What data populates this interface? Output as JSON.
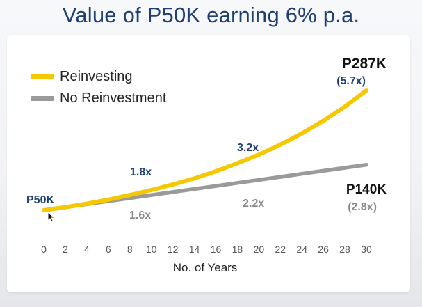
{
  "slide": {
    "title": "Value of P50K earning 6% p.a."
  },
  "colors": {
    "title": "#1f3f73",
    "reinvesting": "#f6c800",
    "no_reinvestment": "#9a9a9a",
    "reinvest_annotation": "#1f3f73",
    "no_reinvest_annotation": "#8a8a8a",
    "end_value": "#111111",
    "axis_text": "#555555",
    "xlabel": "#222222"
  },
  "annotations": {
    "start_label": "P50K",
    "reinvest_end_value": "P287K",
    "reinvest_end_multiple": "(5.7x)",
    "reinvest_mid_1": "1.8x",
    "reinvest_mid_2": "3.2x",
    "no_reinvest_end_value": "P140K",
    "no_reinvest_end_multiple": "(2.8x)",
    "no_reinvest_mid_1": "1.6x",
    "no_reinvest_mid_2": "2.2x"
  },
  "cursor_icon": "mouse-pointer-icon",
  "chart_data": {
    "type": "line",
    "title": "Value of P50K earning 6% p.a.",
    "xlabel": "No. of Years",
    "ylabel": "",
    "x": [
      0,
      2,
      4,
      6,
      8,
      10,
      12,
      14,
      16,
      18,
      20,
      22,
      24,
      26,
      28,
      30
    ],
    "xlim": [
      0,
      30
    ],
    "ylim": [
      40,
      300
    ],
    "grid": false,
    "legend_position": "top-left",
    "series": [
      {
        "name": "Reinvesting",
        "color": "#f6c800",
        "values": [
          50,
          56,
          63,
          71,
          80,
          90,
          101,
          113,
          127,
          143,
          160,
          180,
          202,
          227,
          255,
          287
        ]
      },
      {
        "name": "No Reinvestment",
        "color": "#9a9a9a",
        "values": [
          50,
          56,
          62,
          68,
          74,
          80,
          86,
          92,
          98,
          104,
          110,
          116,
          122,
          128,
          134,
          140
        ]
      }
    ]
  }
}
